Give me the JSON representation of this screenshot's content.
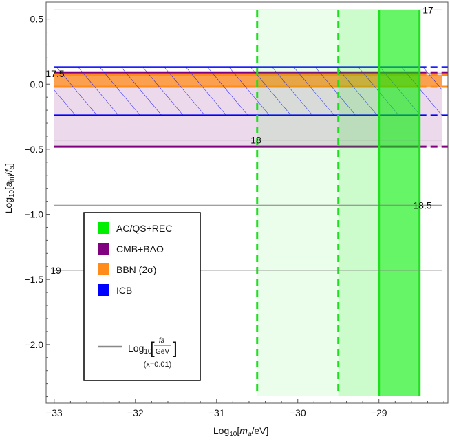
{
  "chart_data": {
    "type": "area",
    "xlabel": "Log10[ma/eV]",
    "ylabel": "Log10[aini/fa]",
    "xlim": [
      -33.1,
      -28.15
    ],
    "ylim": [
      -2.45,
      0.63
    ],
    "x_ticks": [
      -33,
      -32,
      -31,
      -30,
      -29
    ],
    "x_tick_labels": [
      "−33",
      "−32",
      "−31",
      "−30",
      "−29"
    ],
    "y_ticks": [
      0.5,
      0,
      -0.5,
      -1.0,
      -1.5,
      -2.0
    ],
    "y_tick_labels": [
      "0.5",
      "0.0",
      "−0.5",
      "−1.0",
      "−1.5",
      "−2.0"
    ],
    "grid": false,
    "legend_position": "bottom-left",
    "legend": [
      {
        "label": "AC/QS+REC",
        "color": "#00ee00"
      },
      {
        "label": "CMB+BAO",
        "color": "#800080"
      },
      {
        "label": "BBN (2σ)",
        "color": "#ff8c1a"
      },
      {
        "label": "ICB",
        "color": "#0000ff"
      }
    ],
    "legend_line": {
      "prefix": "Log",
      "sub": "10",
      "frac_num": "fa",
      "frac_den": "GeV",
      "note": "(x=0.01)",
      "color": "#888888"
    },
    "regions": [
      {
        "name": "AC/QS+REC",
        "kind": "vertical",
        "x": [
          -29.0,
          -28.5
        ],
        "style": "solid",
        "color": "#00ee00",
        "opacity": 0.6
      },
      {
        "name": "AC/QS+REC",
        "kind": "vertical",
        "x": [
          -29.5,
          -29.0
        ],
        "style": "dashed",
        "color": "#00ee00",
        "opacity": 0.2
      },
      {
        "name": "AC/QS+REC",
        "kind": "vertical",
        "x": [
          -30.5,
          -29.5
        ],
        "style": "dashed",
        "color": "#00ee00",
        "opacity": 0.08
      },
      {
        "name": "CMB+BAO",
        "kind": "horizontal",
        "y": [
          -0.48,
          0.09
        ],
        "x_solid_max": -28.5,
        "color": "#800080",
        "opacity": 0.15
      },
      {
        "name": "BBN (2σ)",
        "kind": "horizontal",
        "y": [
          -0.02,
          0.07
        ],
        "x_solid_max": -28.5,
        "color": "#ff8c1a",
        "opacity": 0.75
      },
      {
        "name": "ICB",
        "kind": "horizontal",
        "y": [
          -0.24,
          0.13
        ],
        "x_solid_max": -28.5,
        "color": "#0000ff",
        "hatched": true
      }
    ],
    "contours": [
      {
        "label": "17",
        "y": 0.57
      },
      {
        "label": "17.5",
        "y": 0.08
      },
      {
        "label": "18",
        "y": -0.43
      },
      {
        "label": "18.5",
        "y": -0.93
      },
      {
        "label": "19",
        "y": -1.43
      }
    ]
  }
}
